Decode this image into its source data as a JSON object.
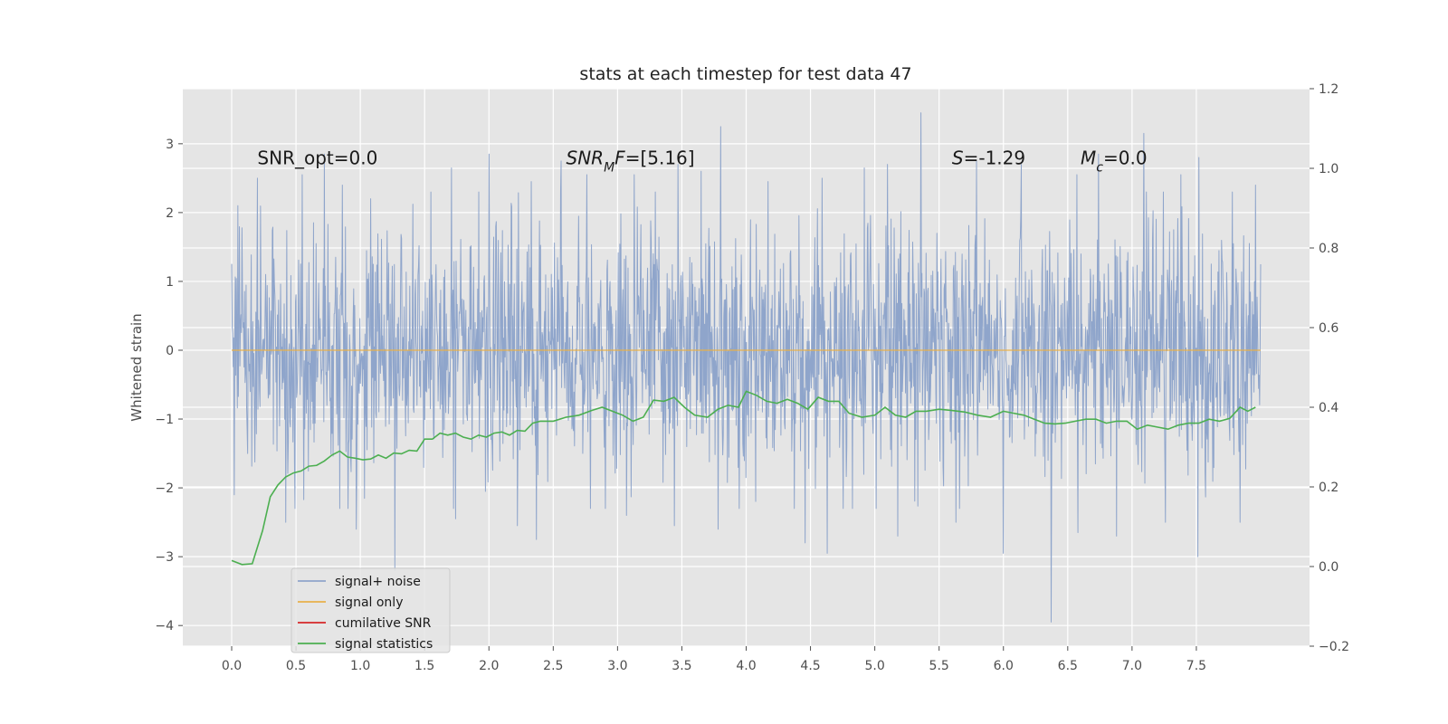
{
  "chart_data": {
    "type": "line",
    "title": "stats at each timestep for test data 47",
    "ylabel": "Whitened strain",
    "xlim": [
      -0.38,
      8.38
    ],
    "ylim": [
      -4.3,
      3.8
    ],
    "y2lim": [
      -0.2,
      1.2
    ],
    "xticks": [
      0.0,
      0.5,
      1.0,
      1.5,
      2.0,
      2.5,
      3.0,
      3.5,
      4.0,
      4.5,
      5.0,
      5.5,
      6.0,
      6.5,
      7.0,
      7.5
    ],
    "xtick_labels": [
      "0.0",
      "0.5",
      "1.0",
      "1.5",
      "2.0",
      "2.5",
      "3.0",
      "3.5",
      "4.0",
      "4.5",
      "5.0",
      "5.5",
      "6.0",
      "6.5",
      "7.0",
      "7.5"
    ],
    "yticks": [
      -4,
      -3,
      -2,
      -1,
      0,
      1,
      2,
      3
    ],
    "ytick_labels": [
      "−4",
      "−3",
      "−2",
      "−1",
      "0",
      "1",
      "2",
      "3"
    ],
    "y2ticks": [
      -0.2,
      0.0,
      0.2,
      0.4,
      0.6,
      0.8,
      1.0,
      1.2
    ],
    "y2tick_labels": [
      "−0.2",
      "0.0",
      "0.2",
      "0.4",
      "0.6",
      "0.8",
      "1.0",
      "1.2"
    ],
    "grid": true,
    "legend_position": "lower-left",
    "annotations": [
      {
        "x": 0.2,
        "y": 2.7,
        "parts": [
          {
            "t": "SNR_opt=0.0",
            "i": false
          }
        ]
      },
      {
        "x": 2.6,
        "y": 2.7,
        "parts": [
          {
            "t": "SNR",
            "i": true
          },
          {
            "t": "M",
            "i": true,
            "sub": true
          },
          {
            "t": "F",
            "i": true
          },
          {
            "t": "=[5.16]",
            "i": false
          }
        ]
      },
      {
        "x": 5.6,
        "y": 2.7,
        "parts": [
          {
            "t": "S",
            "i": true
          },
          {
            "t": "=-1.29",
            "i": false
          }
        ]
      },
      {
        "x": 6.6,
        "y": 2.7,
        "parts": [
          {
            "t": "M",
            "i": true
          },
          {
            "t": "c",
            "i": true,
            "sub": true
          },
          {
            "t": "=0.0",
            "i": false
          }
        ]
      }
    ],
    "series": [
      {
        "name": "signal+ noise",
        "color": "#8fa5cb",
        "axis": "left",
        "style": "noise",
        "x_range": [
          0.0,
          8.0
        ],
        "std": 0.9,
        "n_points": 2000,
        "peaks": [
          {
            "x": 0.05,
            "y": 2.1
          },
          {
            "x": 0.2,
            "y": 2.5
          },
          {
            "x": 0.55,
            "y": 2.55
          },
          {
            "x": 0.72,
            "y": 2.85
          },
          {
            "x": 0.86,
            "y": 2.4
          },
          {
            "x": 1.08,
            "y": 2.2
          },
          {
            "x": 1.55,
            "y": 2.3
          },
          {
            "x": 1.71,
            "y": 2.65
          },
          {
            "x": 2.0,
            "y": 2.85
          },
          {
            "x": 2.33,
            "y": 2.45
          },
          {
            "x": 2.56,
            "y": 2.75
          },
          {
            "x": 2.76,
            "y": 2.55
          },
          {
            "x": 3.13,
            "y": 2.55
          },
          {
            "x": 3.47,
            "y": 2.7
          },
          {
            "x": 3.65,
            "y": 2.6
          },
          {
            "x": 3.8,
            "y": 3.25
          },
          {
            "x": 4.17,
            "y": 2.45
          },
          {
            "x": 4.59,
            "y": 2.5
          },
          {
            "x": 4.92,
            "y": 2.65
          },
          {
            "x": 5.1,
            "y": 2.7
          },
          {
            "x": 5.36,
            "y": 3.45
          },
          {
            "x": 5.79,
            "y": 2.75
          },
          {
            "x": 6.14,
            "y": 2.7
          },
          {
            "x": 6.57,
            "y": 2.55
          },
          {
            "x": 6.74,
            "y": 2.85
          },
          {
            "x": 7.09,
            "y": 3.15
          },
          {
            "x": 7.38,
            "y": 2.55
          },
          {
            "x": 7.52,
            "y": 2.8
          },
          {
            "x": 7.78,
            "y": 2.3
          },
          {
            "x": 7.96,
            "y": 2.4
          },
          {
            "x": 0.42,
            "y": -2.5
          },
          {
            "x": 0.97,
            "y": -2.6
          },
          {
            "x": 1.27,
            "y": -3.2
          },
          {
            "x": 1.74,
            "y": -2.45
          },
          {
            "x": 2.22,
            "y": -2.55
          },
          {
            "x": 2.37,
            "y": -2.75
          },
          {
            "x": 2.79,
            "y": -2.3
          },
          {
            "x": 3.07,
            "y": -2.4
          },
          {
            "x": 3.44,
            "y": -2.55
          },
          {
            "x": 3.78,
            "y": -2.6
          },
          {
            "x": 4.46,
            "y": -2.8
          },
          {
            "x": 4.63,
            "y": -2.95
          },
          {
            "x": 5.18,
            "y": -2.7
          },
          {
            "x": 5.63,
            "y": -2.5
          },
          {
            "x": 6.0,
            "y": -2.95
          },
          {
            "x": 6.37,
            "y": -3.95
          },
          {
            "x": 6.58,
            "y": -2.65
          },
          {
            "x": 6.88,
            "y": -2.7
          },
          {
            "x": 7.26,
            "y": -2.5
          },
          {
            "x": 7.51,
            "y": -3.0
          },
          {
            "x": 7.84,
            "y": -2.5
          }
        ]
      },
      {
        "name": "signal only",
        "color": "#e8b04a",
        "axis": "left",
        "style": "line",
        "x": [
          0.0,
          8.0
        ],
        "y": [
          0.0,
          0.0
        ]
      },
      {
        "name": "cumilative SNR",
        "color": "#d62728",
        "axis": "right",
        "style": "line",
        "x": [],
        "y": []
      },
      {
        "name": "signal statistics",
        "color": "#4caf50",
        "axis": "right",
        "style": "line",
        "x": [
          0.0,
          0.08,
          0.16,
          0.24,
          0.3,
          0.36,
          0.42,
          0.48,
          0.54,
          0.6,
          0.66,
          0.72,
          0.78,
          0.84,
          0.9,
          0.96,
          1.02,
          1.08,
          1.14,
          1.2,
          1.26,
          1.32,
          1.38,
          1.44,
          1.5,
          1.56,
          1.62,
          1.68,
          1.74,
          1.8,
          1.86,
          1.92,
          1.98,
          2.04,
          2.1,
          2.16,
          2.22,
          2.28,
          2.34,
          2.4,
          2.5,
          2.6,
          2.7,
          2.8,
          2.88,
          2.96,
          3.04,
          3.12,
          3.2,
          3.28,
          3.36,
          3.44,
          3.52,
          3.6,
          3.7,
          3.78,
          3.86,
          3.94,
          4.0,
          4.08,
          4.16,
          4.24,
          4.32,
          4.4,
          4.48,
          4.56,
          4.64,
          4.72,
          4.8,
          4.9,
          5.0,
          5.08,
          5.16,
          5.24,
          5.32,
          5.4,
          5.5,
          5.6,
          5.7,
          5.8,
          5.9,
          6.0,
          6.08,
          6.16,
          6.24,
          6.32,
          6.4,
          6.48,
          6.56,
          6.64,
          6.72,
          6.8,
          6.88,
          6.96,
          7.04,
          7.12,
          7.2,
          7.28,
          7.36,
          7.44,
          7.52,
          7.6,
          7.68,
          7.76,
          7.84,
          7.9,
          7.96
        ],
        "y": [
          0.015,
          0.005,
          0.007,
          0.09,
          0.175,
          0.205,
          0.225,
          0.235,
          0.24,
          0.252,
          0.254,
          0.265,
          0.28,
          0.29,
          0.275,
          0.272,
          0.268,
          0.27,
          0.28,
          0.272,
          0.285,
          0.283,
          0.292,
          0.29,
          0.32,
          0.32,
          0.335,
          0.33,
          0.335,
          0.325,
          0.32,
          0.33,
          0.325,
          0.335,
          0.338,
          0.33,
          0.342,
          0.34,
          0.36,
          0.365,
          0.365,
          0.375,
          0.38,
          0.392,
          0.4,
          0.39,
          0.38,
          0.365,
          0.375,
          0.418,
          0.415,
          0.425,
          0.4,
          0.38,
          0.375,
          0.395,
          0.405,
          0.4,
          0.44,
          0.43,
          0.415,
          0.41,
          0.42,
          0.41,
          0.395,
          0.425,
          0.415,
          0.415,
          0.385,
          0.375,
          0.38,
          0.4,
          0.38,
          0.375,
          0.39,
          0.39,
          0.395,
          0.392,
          0.388,
          0.38,
          0.375,
          0.39,
          0.385,
          0.38,
          0.37,
          0.36,
          0.358,
          0.36,
          0.365,
          0.37,
          0.37,
          0.36,
          0.365,
          0.365,
          0.345,
          0.355,
          0.35,
          0.345,
          0.355,
          0.36,
          0.36,
          0.37,
          0.365,
          0.372,
          0.4,
          0.39,
          0.4
        ]
      }
    ]
  }
}
